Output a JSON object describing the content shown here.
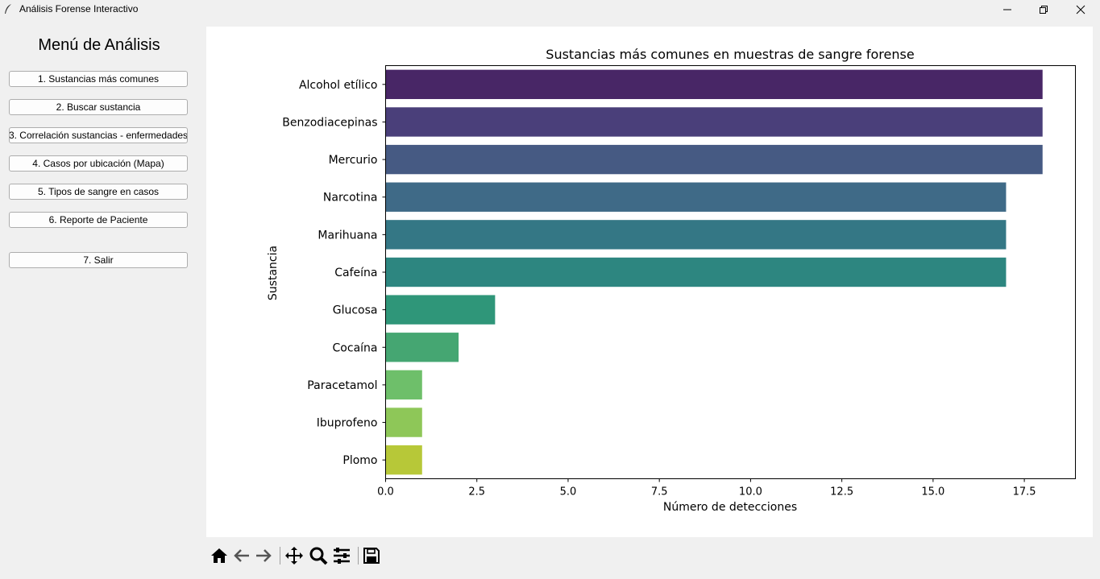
{
  "window": {
    "title": "Análisis Forense Interactivo",
    "icons": [
      "feather-icon",
      "minimize-icon",
      "restore-icon",
      "close-icon"
    ]
  },
  "sidebar": {
    "title": "Menú de Análisis",
    "items": [
      {
        "label": "1. Sustancias más comunes"
      },
      {
        "label": "2. Buscar sustancia"
      },
      {
        "label": "3. Correlación sustancias - enfermedades"
      },
      {
        "label": "4. Casos por ubicación (Mapa)"
      },
      {
        "label": "5. Tipos de sangre en casos"
      },
      {
        "label": "6. Reporte de Paciente"
      },
      {
        "label": "7. Salir"
      }
    ]
  },
  "toolbar": {
    "icons": [
      "home-icon",
      "back-icon",
      "forward-icon",
      "pan-icon",
      "zoom-icon",
      "configure-subplots-icon",
      "save-icon"
    ]
  },
  "chart_data": {
    "type": "bar",
    "orientation": "horizontal",
    "title": "Sustancias más comunes en muestras de sangre forense",
    "xlabel": "Número de detecciones",
    "ylabel": "Sustancia",
    "categories": [
      "Alcohol etílico",
      "Benzodiacepinas",
      "Mercurio",
      "Narcotina",
      "Marihuana",
      "Cafeína",
      "Glucosa",
      "Cocaína",
      "Paracetamol",
      "Ibuprofeno",
      "Plomo"
    ],
    "values": [
      18,
      18,
      18,
      17,
      17,
      17,
      3,
      2,
      1,
      1,
      1
    ],
    "colors": [
      "#482666",
      "#4a3f7a",
      "#465a83",
      "#3f6a87",
      "#347785",
      "#2d8680",
      "#2f9679",
      "#45a672",
      "#6ebf6a",
      "#8ec758",
      "#b7c838"
    ],
    "xlim": [
      0,
      18.9
    ],
    "xticks": [
      "0.0",
      "2.5",
      "5.0",
      "7.5",
      "10.0",
      "12.5",
      "15.0",
      "17.5"
    ],
    "xtick_values": [
      0,
      2.5,
      5,
      7.5,
      10,
      12.5,
      15,
      17.5
    ],
    "grid": false
  }
}
